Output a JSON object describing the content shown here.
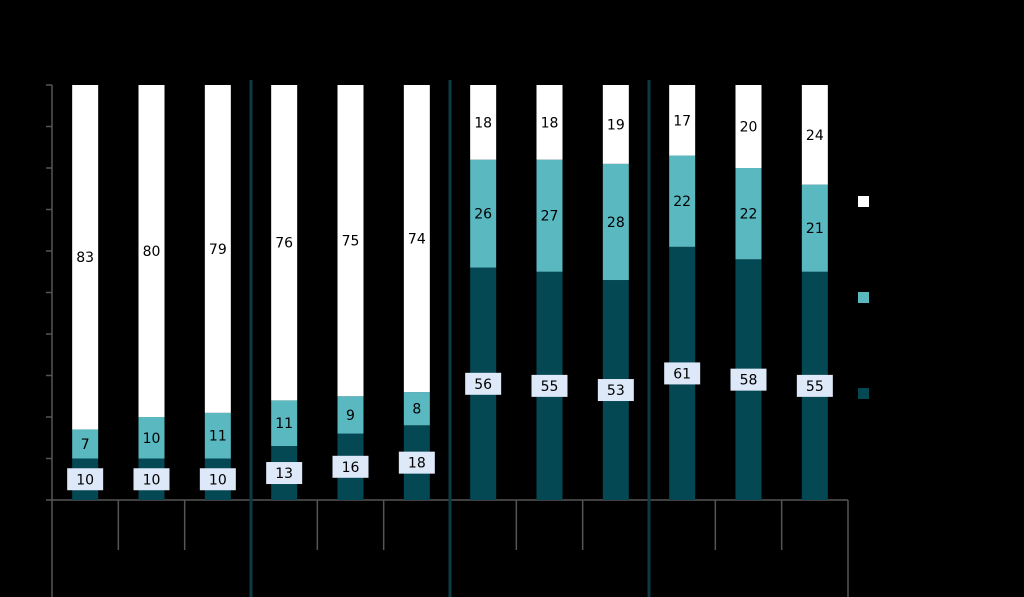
{
  "chart_data": {
    "type": "bar",
    "stacked": true,
    "ylim": [
      0,
      100
    ],
    "grid": false,
    "legend_placement": "right",
    "categories": [
      "",
      "",
      "",
      "",
      "",
      "",
      "",
      "",
      "",
      "",
      "",
      ""
    ],
    "series": [
      {
        "values": [
          10,
          10,
          10,
          13,
          16,
          18,
          56,
          55,
          53,
          61,
          58,
          55
        ],
        "labels": [
          "10",
          "10",
          "10",
          "13",
          "16",
          "18",
          "56",
          "55",
          "53",
          "61",
          "58",
          "55"
        ]
      },
      {
        "values": [
          7,
          10,
          11,
          11,
          9,
          8,
          26,
          27,
          28,
          22,
          22,
          21
        ],
        "labels": [
          "7",
          "10",
          "11",
          "11",
          "9",
          "8",
          "26",
          "27",
          "28",
          "22",
          "22",
          "21"
        ]
      },
      {
        "values": [
          83,
          80,
          79,
          76,
          75,
          74,
          18,
          18,
          19,
          17,
          20,
          24
        ],
        "labels": [
          "83",
          "80",
          "79",
          "76",
          "75",
          "74",
          "18",
          "18",
          "19",
          "17",
          "20",
          "24"
        ]
      }
    ],
    "groups": [
      3,
      3,
      3,
      3
    ],
    "colors": {
      "bottom": "#044853",
      "middle": "#5ab8c1",
      "top": "#ffffff",
      "label_box": "#dde8f8",
      "divider": "#0d3b45",
      "axis": "#555555"
    }
  }
}
